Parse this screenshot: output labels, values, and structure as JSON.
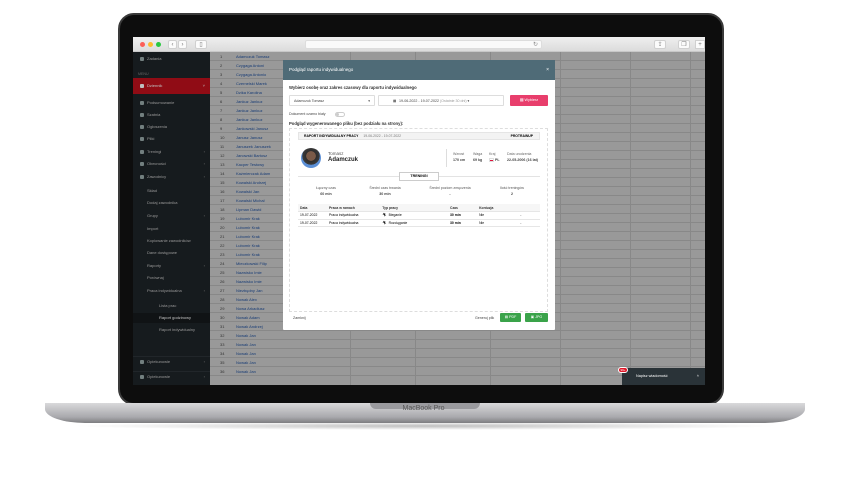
{
  "device": {
    "label": "MacBook Pro"
  },
  "sidebar": {
    "top_item": "Zadania",
    "section": "MENU",
    "items": [
      {
        "label": "Dziennik",
        "style": "red"
      },
      {
        "label": "Podsumowanie",
        "icon": "home-icon"
      },
      {
        "label": "Szatnia",
        "icon": "locker-icon"
      },
      {
        "label": "Ogłoszenia",
        "icon": "megaphone-icon"
      },
      {
        "label": "Pliki",
        "icon": "folder-icon"
      },
      {
        "label": "Treningi",
        "icon": "calendar-icon",
        "chev": true
      },
      {
        "label": "Obecności",
        "icon": "check-icon",
        "chev": true
      },
      {
        "label": "Zawodnicy",
        "icon": "users-icon",
        "chev": true
      },
      {
        "label": "Skład",
        "sub": 1
      },
      {
        "label": "Dodaj zawodnika",
        "sub": 1
      },
      {
        "label": "Grupy",
        "sub": 1,
        "chev": true
      },
      {
        "label": "Import",
        "sub": 1
      },
      {
        "label": "Kopiowanie zawodników",
        "sub": 1
      },
      {
        "label": "Dane dostępowe",
        "sub": 1
      },
      {
        "label": "Raporty",
        "sub": 1,
        "chev": true
      },
      {
        "label": "Porównaj",
        "sub": 1
      },
      {
        "label": "Praca indywidualna",
        "sub": 1,
        "chev": true
      },
      {
        "label": "Lista prac",
        "sub": 2
      },
      {
        "label": "Raport godzinowy",
        "sub": 2,
        "active": true
      },
      {
        "label": "Raport indywidualny",
        "sub": 2
      }
    ],
    "bottom_items": [
      "Opiekunowie",
      "Opiekunowie"
    ]
  },
  "grid": {
    "rows": [
      "Adamczuk Tomasz",
      "Czygaga Antoni",
      "Czygaga Antonio",
      "Czernelski Marek",
      "Dzika Karolina",
      "Jankuz Jankuz",
      "Jankuz Jankuz",
      "Jankuz Jankuz",
      "Jankowski Janusz",
      "Janusz Janusz",
      "Januszek Januszek",
      "Janowski Bartosz",
      "Kacper Testowy",
      "Kaźmierczak Adam",
      "Kowalski Andrzej",
      "Kowalski Jan",
      "Kowalski Michał",
      "Lipman Dawid",
      "Lubomir Krak",
      "Lubomir Krak",
      "Lubomir Krak",
      "Lubomir Krak",
      "Lubomir Krak",
      "Mieczkowski Filip",
      "Nazwisko Imie",
      "Nazwisko Imie",
      "Niezbędny Jan",
      "Nowak Alex",
      "Nowa Arkadiusz",
      "Nowak Adam",
      "Nowak Andrzej",
      "Nowak Jan",
      "Nowak Jan",
      "Nowak Jan",
      "Nowak Jan",
      "Nowak Jan"
    ]
  },
  "modal": {
    "title": "Podgląd raportu indywidualnego",
    "close": "×",
    "prompt": "Wybierz osobę oraz zakres czasowy dla raportu indywidualnego",
    "person_select": "Adamczuk Tomasz",
    "date_range": "19-06-2022 - 19-07-2022",
    "date_hint": "(Ostatnie 30 dni)",
    "choose_button": "Wybierz",
    "bw_label": "Dokument czarno biały",
    "bw_on": false,
    "preview_label": "Podgląd wygenerowanego pliku (bez podziału na strony):",
    "close_button": "Zamknij",
    "generate_label": "Generuj plik",
    "pdf_button": "PDF",
    "jpg_button": "JPG"
  },
  "report": {
    "title": "RAPORT INDYWIDUALNY PRACY",
    "range": "19-06-2022 - 19-07-2022",
    "brand": "PROTRAINUP",
    "first_name": "Tomasz",
    "last_name": "Adamczuk",
    "stats": [
      {
        "label": "Wzrost",
        "value": "170 cm"
      },
      {
        "label": "Waga",
        "value": "69 kg"
      },
      {
        "label": "Kraj",
        "value": "PL"
      },
      {
        "label": "Data urodzenia",
        "value": "22-05-2006 (16 lat)"
      }
    ],
    "section": "TRENINGI",
    "summary": [
      {
        "label": "Łączny czas",
        "value": "60 min"
      },
      {
        "label": "Średni czas trwania",
        "value": "30 min"
      },
      {
        "label": "Średni poziom zmęczenia",
        "value": "-"
      },
      {
        "label": "Ilość treningów",
        "value": "2"
      }
    ],
    "columns": [
      "Data",
      "Praca w ramach",
      "Typ pracy",
      "Czas",
      "Kontuzja",
      ""
    ],
    "rows": [
      [
        "19-07-2022",
        "Praca indywidualna",
        "Bieganie",
        "30 min",
        "Nie",
        "-"
      ],
      [
        "19-07-2022",
        "Praca indywidualna",
        "Rozciąganie",
        "30 min",
        "Nie",
        "-"
      ]
    ]
  },
  "chat": {
    "label": "Napisz wiadomość",
    "badge": "99+"
  },
  "colors": {
    "accent": "#e83e6c",
    "sidebar_active": "#c0111d",
    "modal_header": "#4f6b77",
    "success": "#3aa34a"
  }
}
